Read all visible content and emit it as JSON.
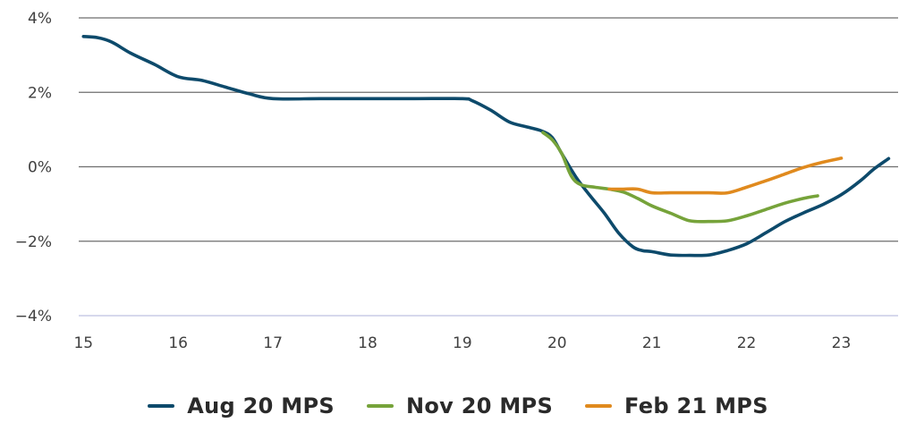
{
  "colors": {
    "aug": "#0d4a6b",
    "nov": "#76a33a",
    "feb": "#e08a1e",
    "grid": "#6e6e6e",
    "axis": "#c8cce6"
  },
  "chart_data": {
    "type": "line",
    "title": "",
    "xlabel": "",
    "ylabel": "",
    "xlim": [
      14.95,
      23.6
    ],
    "ylim": [
      -4,
      4
    ],
    "y_ticks": [
      4,
      2,
      0,
      -2,
      -4
    ],
    "y_tick_labels": [
      "4%",
      "2%",
      "0%",
      "−2%",
      "−4%"
    ],
    "x_ticks": [
      15,
      16,
      17,
      18,
      19,
      20,
      21,
      22,
      23
    ],
    "x_tick_labels": [
      "15",
      "16",
      "17",
      "18",
      "19",
      "20",
      "21",
      "22",
      "23"
    ],
    "grid": true,
    "legend_position": "bottom",
    "series": [
      {
        "name": "Aug 20 MPS",
        "color": "#0d4a6b",
        "x": [
          15.0,
          15.15,
          15.3,
          15.5,
          15.75,
          16.0,
          16.25,
          16.5,
          16.75,
          17.0,
          17.5,
          18.0,
          18.5,
          19.0,
          19.1,
          19.3,
          19.5,
          19.7,
          19.85,
          19.95,
          20.05,
          20.2,
          20.35,
          20.5,
          20.65,
          20.8,
          20.9,
          21.0,
          21.2,
          21.4,
          21.6,
          21.8,
          22.0,
          22.2,
          22.4,
          22.6,
          22.8,
          23.0,
          23.2,
          23.35,
          23.5
        ],
        "y": [
          3.5,
          3.47,
          3.35,
          3.05,
          2.75,
          2.42,
          2.32,
          2.14,
          1.96,
          1.83,
          1.83,
          1.83,
          1.83,
          1.83,
          1.78,
          1.52,
          1.2,
          1.06,
          0.95,
          0.78,
          0.35,
          -0.28,
          -0.78,
          -1.25,
          -1.78,
          -2.15,
          -2.25,
          -2.28,
          -2.37,
          -2.38,
          -2.37,
          -2.25,
          -2.07,
          -1.78,
          -1.48,
          -1.24,
          -1.02,
          -0.75,
          -0.38,
          -0.05,
          0.22
        ]
      },
      {
        "name": "Nov 20 MPS",
        "color": "#76a33a",
        "x": [
          19.85,
          19.95,
          20.05,
          20.15,
          20.25,
          20.4,
          20.55,
          20.7,
          20.85,
          21.0,
          21.2,
          21.4,
          21.6,
          21.8,
          22.0,
          22.2,
          22.4,
          22.6,
          22.75
        ],
        "y": [
          0.92,
          0.72,
          0.35,
          -0.25,
          -0.48,
          -0.55,
          -0.6,
          -0.68,
          -0.85,
          -1.05,
          -1.25,
          -1.45,
          -1.47,
          -1.45,
          -1.32,
          -1.15,
          -0.98,
          -0.85,
          -0.78
        ]
      },
      {
        "name": "Feb 21 MPS",
        "color": "#e08a1e",
        "x": [
          20.55,
          20.7,
          20.85,
          21.0,
          21.2,
          21.4,
          21.6,
          21.8,
          22.0,
          22.2,
          22.4,
          22.6,
          22.8,
          23.0
        ],
        "y": [
          -0.6,
          -0.6,
          -0.6,
          -0.7,
          -0.7,
          -0.7,
          -0.7,
          -0.7,
          -0.55,
          -0.38,
          -0.2,
          -0.02,
          0.12,
          0.23
        ]
      }
    ]
  }
}
